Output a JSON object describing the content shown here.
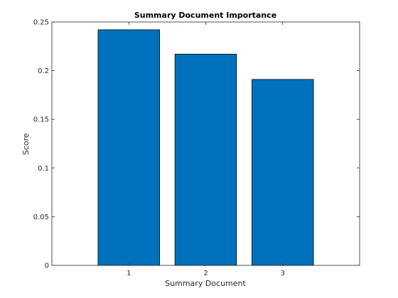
{
  "chart_data": {
    "type": "bar",
    "title": "Summary Document Importance",
    "xlabel": "Summary Document",
    "ylabel": "Score",
    "categories": [
      "1",
      "2",
      "3"
    ],
    "values": [
      0.242,
      0.217,
      0.191
    ],
    "xlim": [
      0,
      4
    ],
    "ylim": [
      0,
      0.25
    ],
    "yticks": [
      0,
      0.05,
      0.1,
      0.15,
      0.2,
      0.25
    ],
    "ytick_labels": [
      "0",
      "0.05",
      "0.1",
      "0.15",
      "0.2",
      "0.25"
    ],
    "grid": false,
    "bar_color": "#0072bd",
    "edge_color": "#000000"
  }
}
